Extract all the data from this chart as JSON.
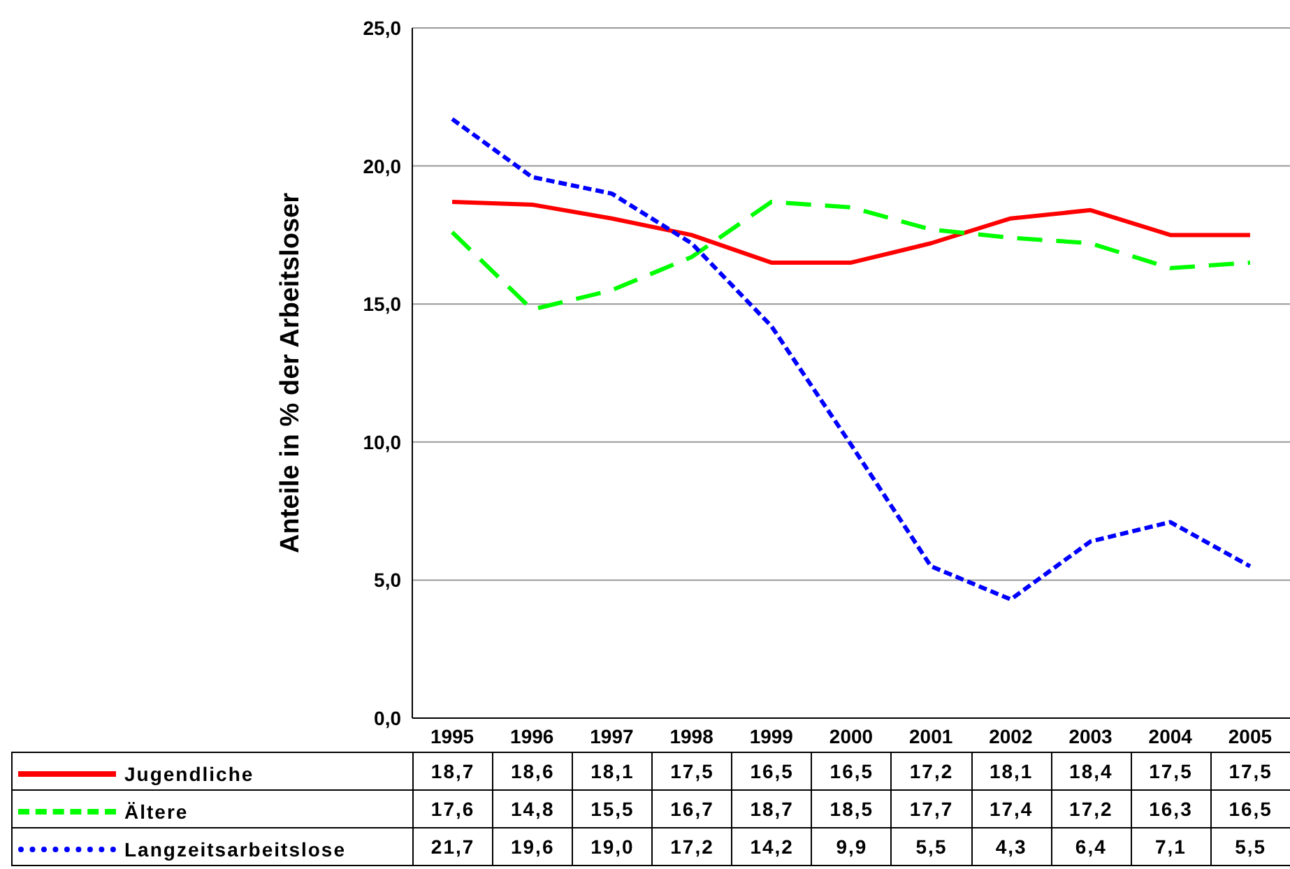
{
  "chart_data": {
    "type": "line",
    "ylabel": "Anteile in % der Arbeitsloser",
    "categories": [
      "1995",
      "1996",
      "1997",
      "1998",
      "1999",
      "2000",
      "2001",
      "2002",
      "2003",
      "2004",
      "2005"
    ],
    "series": [
      {
        "name": "Jugendliche",
        "color": "#ff0000",
        "line_style": "solid",
        "values": [
          18.7,
          18.6,
          18.1,
          17.5,
          16.5,
          16.5,
          17.2,
          18.1,
          18.4,
          17.5,
          17.5
        ],
        "value_labels": [
          "18,7",
          "18,6",
          "18,1",
          "17,5",
          "16,5",
          "16,5",
          "17,2",
          "18,1",
          "18,4",
          "17,5",
          "17,5"
        ]
      },
      {
        "name": "Ältere",
        "color": "#00ff00",
        "line_style": "dashed",
        "values": [
          17.6,
          14.8,
          15.5,
          16.7,
          18.7,
          18.5,
          17.7,
          17.4,
          17.2,
          16.3,
          16.5
        ],
        "value_labels": [
          "17,6",
          "14,8",
          "15,5",
          "16,7",
          "18,7",
          "18,5",
          "17,7",
          "17,4",
          "17,2",
          "16,3",
          "16,5"
        ]
      },
      {
        "name": "Langzeitsarbeitslose",
        "color": "#0000ff",
        "line_style": "dotted",
        "values": [
          21.7,
          19.6,
          19.0,
          17.2,
          14.2,
          9.9,
          5.5,
          4.3,
          6.4,
          7.1,
          5.5
        ],
        "value_labels": [
          "21,7",
          "19,6",
          "19,0",
          "17,2",
          "14,2",
          "9,9",
          "5,5",
          "4,3",
          "6,4",
          "7,1",
          "5,5"
        ]
      }
    ],
    "ylim": [
      0,
      25
    ],
    "yticks": [
      {
        "value": 0,
        "label": "0,0"
      },
      {
        "value": 5,
        "label": "5,0"
      },
      {
        "value": 10,
        "label": "10,0"
      },
      {
        "value": 15,
        "label": "15,0"
      },
      {
        "value": 20,
        "label": "20,0"
      },
      {
        "value": 25,
        "label": "25,0"
      }
    ],
    "grid": "y",
    "legend": "bottom",
    "marker": "none"
  }
}
